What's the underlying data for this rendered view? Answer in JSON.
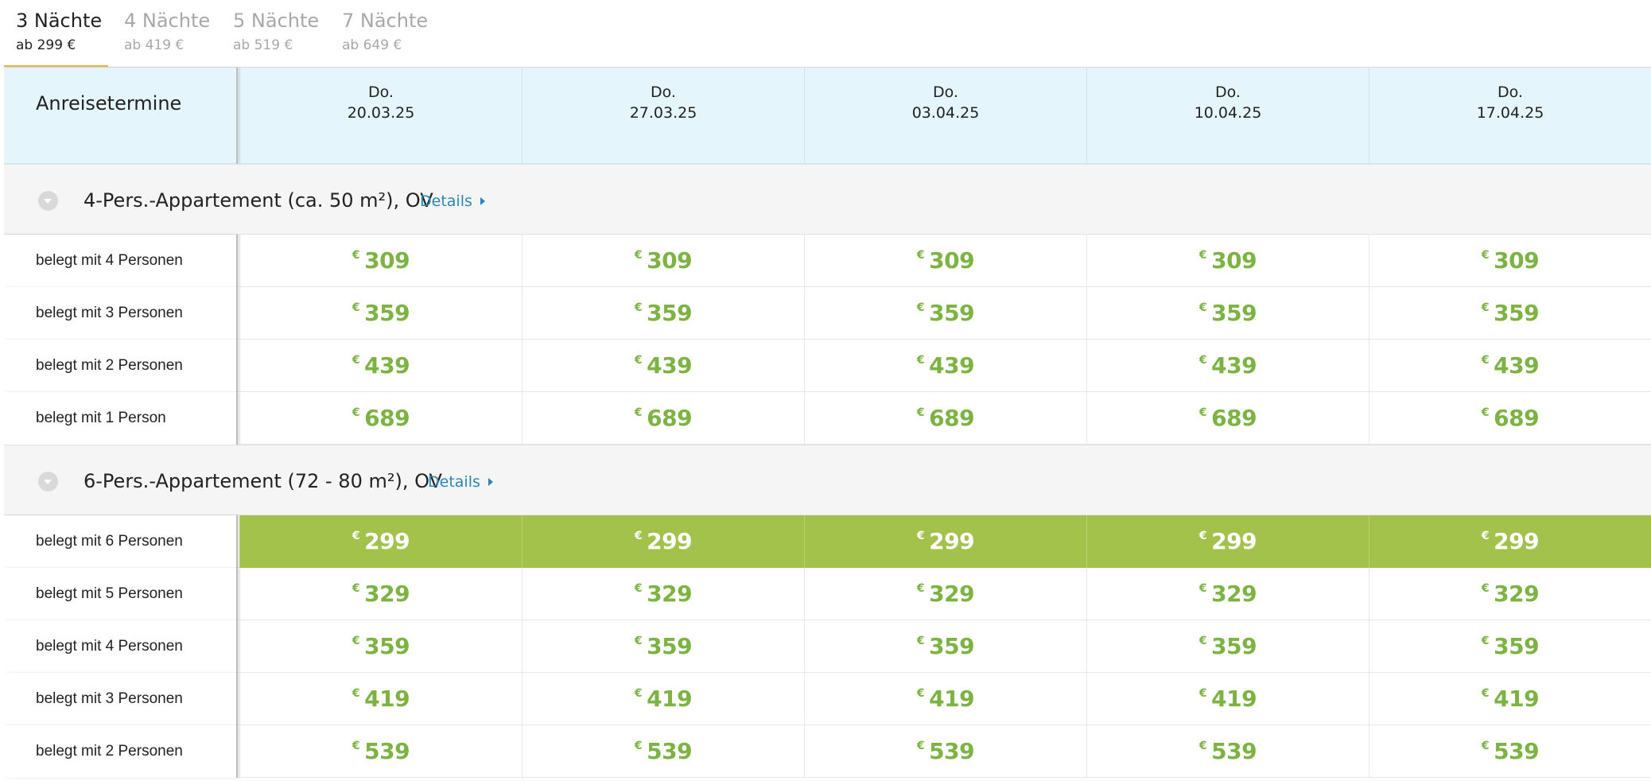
{
  "tabs": [
    {
      "title": "3 Nächte",
      "price": "ab 299 €",
      "active": true
    },
    {
      "title": "4 Nächte",
      "price": "ab 419 €",
      "active": false
    },
    {
      "title": "5 Nächte",
      "price": "ab 519 €",
      "active": false
    },
    {
      "title": "7 Nächte",
      "price": "ab 649 €",
      "active": false
    }
  ],
  "header": {
    "label": "Anreisetermine",
    "dates": [
      {
        "dow": "Do.",
        "date": "20.03.25"
      },
      {
        "dow": "Do.",
        "date": "27.03.25"
      },
      {
        "dow": "Do.",
        "date": "03.04.25"
      },
      {
        "dow": "Do.",
        "date": "10.04.25"
      },
      {
        "dow": "Do.",
        "date": "17.04.25"
      }
    ]
  },
  "currency": "€",
  "groups": [
    {
      "title": "4-Pers.-Appartement (ca. 50 m²), OV",
      "details_label": "Details",
      "rows": [
        {
          "label": "belegt mit 4 Personen",
          "prices": [
            "309",
            "309",
            "309",
            "309",
            "309"
          ],
          "highlight": false
        },
        {
          "label": "belegt mit 3 Personen",
          "prices": [
            "359",
            "359",
            "359",
            "359",
            "359"
          ],
          "highlight": false
        },
        {
          "label": "belegt mit 2 Personen",
          "prices": [
            "439",
            "439",
            "439",
            "439",
            "439"
          ],
          "highlight": false
        },
        {
          "label": "belegt mit 1 Person",
          "prices": [
            "689",
            "689",
            "689",
            "689",
            "689"
          ],
          "highlight": false
        }
      ]
    },
    {
      "title": "6-Pers.-Appartement (72 - 80 m²), OV",
      "details_label": "Details",
      "rows": [
        {
          "label": "belegt mit 6 Personen",
          "prices": [
            "299",
            "299",
            "299",
            "299",
            "299"
          ],
          "highlight": true
        },
        {
          "label": "belegt mit 5 Personen",
          "prices": [
            "329",
            "329",
            "329",
            "329",
            "329"
          ],
          "highlight": false
        },
        {
          "label": "belegt mit 4 Personen",
          "prices": [
            "359",
            "359",
            "359",
            "359",
            "359"
          ],
          "highlight": false
        },
        {
          "label": "belegt mit 3 Personen",
          "prices": [
            "419",
            "419",
            "419",
            "419",
            "419"
          ],
          "highlight": false
        },
        {
          "label": "belegt mit 2 Personen",
          "prices": [
            "539",
            "539",
            "539",
            "539",
            "539"
          ],
          "highlight": false
        }
      ]
    }
  ],
  "colors": {
    "price_green": "#7cb342",
    "highlight_bg": "#a2c24c",
    "tab_underline": "#f0b63c",
    "header_bg": "#e5f5fc",
    "link_blue": "#2a86b8"
  }
}
